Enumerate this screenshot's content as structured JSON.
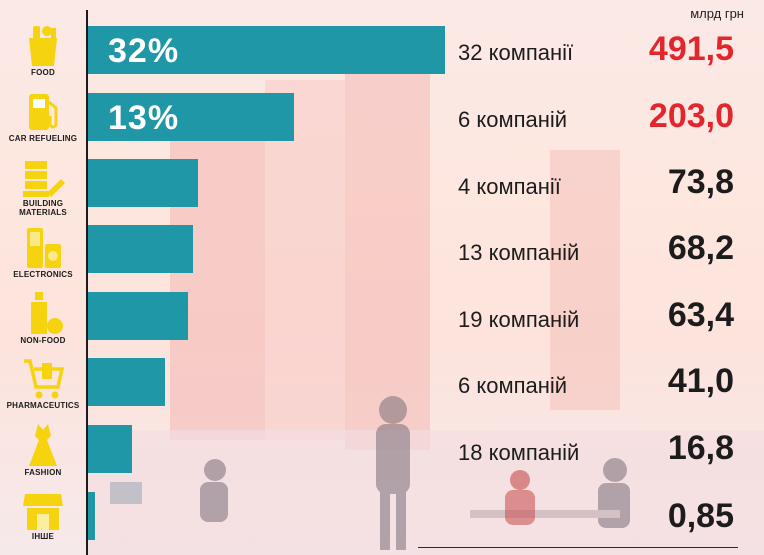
{
  "unit": "млрд грн",
  "colors": {
    "bar": "#1f97a6",
    "icon": "#f5d40f",
    "highlight": "#e1262c",
    "text": "#1c1c1c"
  },
  "chart_data": {
    "type": "bar",
    "orientation": "horizontal",
    "categories": [
      "FOOD",
      "CAR REFUELING",
      "BUILDING MATERIALS",
      "ELECTRONICS",
      "NON-FOOD",
      "PHARMACEUTICS",
      "FASHION",
      "ІНШЕ"
    ],
    "values": [
      491.5,
      203.0,
      73.8,
      68.2,
      63.4,
      41.0,
      16.8,
      0.85
    ],
    "value_labels": [
      "491,5",
      "203,0",
      "73,8",
      "68,2",
      "63,4",
      "41,0",
      "16,8",
      "0,85"
    ],
    "company_counts": [
      "32 компанії",
      "6 компаній",
      "4 компанії",
      "13 компаній",
      "19 компаній",
      "6 компаній",
      "18 компаній",
      ""
    ],
    "share_labels": [
      "32%",
      "13%",
      "",
      "",
      "",
      "",
      "",
      ""
    ],
    "highlighted": [
      true,
      true,
      false,
      false,
      false,
      false,
      false,
      false
    ],
    "unit": "млрд грн",
    "icons": [
      "grocery-bag-icon",
      "fuel-pump-icon",
      "building-materials-icon",
      "electronics-icon",
      "non-food-icon",
      "pharmacy-cart-icon",
      "dress-icon",
      "store-icon"
    ]
  }
}
